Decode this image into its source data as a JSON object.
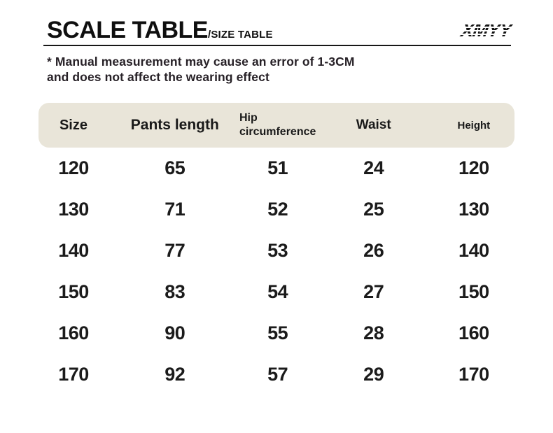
{
  "header": {
    "title": "SCALE TABLE",
    "subtitle": "/SIZE TABLE",
    "logo_text": "XMYY"
  },
  "note": {
    "line1": "* Manual measurement may cause an error of 1-3CM",
    "line2": "and does not affect the wearing effect"
  },
  "colors": {
    "header_band_bg": "#e9e5d9",
    "text": "#151515"
  },
  "table": {
    "columns": [
      {
        "label": "Size"
      },
      {
        "label": "Pants length"
      },
      {
        "label": "Hip circumference"
      },
      {
        "label": "Waist"
      },
      {
        "label": "Height"
      }
    ],
    "rows": [
      [
        "120",
        "65",
        "51",
        "24",
        "120"
      ],
      [
        "130",
        "71",
        "52",
        "25",
        "130"
      ],
      [
        "140",
        "77",
        "53",
        "26",
        "140"
      ],
      [
        "150",
        "83",
        "54",
        "27",
        "150"
      ],
      [
        "160",
        "90",
        "55",
        "28",
        "160"
      ],
      [
        "170",
        "92",
        "57",
        "29",
        "170"
      ]
    ]
  },
  "chart_data": {
    "type": "table",
    "title": "SCALE TABLE/SIZE TABLE",
    "columns": [
      "Size",
      "Pants length",
      "Hip circumference",
      "Waist",
      "Height"
    ],
    "rows": [
      [
        120,
        65,
        51,
        24,
        120
      ],
      [
        130,
        71,
        52,
        25,
        130
      ],
      [
        140,
        77,
        53,
        26,
        140
      ],
      [
        150,
        83,
        54,
        27,
        150
      ],
      [
        160,
        90,
        55,
        28,
        160
      ],
      [
        170,
        92,
        57,
        29,
        170
      ]
    ],
    "note": "* Manual measurement may cause an error of 1-3CM and does not affect the wearing effect"
  }
}
